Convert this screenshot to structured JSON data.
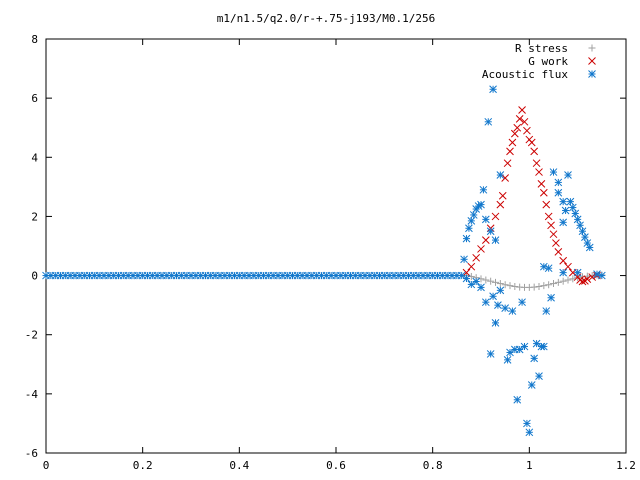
{
  "chart_data": {
    "type": "scatter",
    "title": "m1/n1.5/q2.0/r-+.75-j193/M0.1/256",
    "xlabel": "",
    "ylabel": "",
    "xlim": [
      0,
      1.2
    ],
    "ylim": [
      -6,
      8
    ],
    "x_ticks": [
      0,
      0.2,
      0.4,
      0.6,
      0.8,
      1,
      1.2
    ],
    "x_tick_labels": [
      "0",
      "0.2",
      "0.4",
      "0.6",
      "0.8",
      "1",
      "1.2"
    ],
    "y_ticks": [
      -6,
      -4,
      -2,
      0,
      2,
      4,
      6,
      8
    ],
    "y_tick_labels": [
      "-6",
      "-4",
      "-2",
      "0",
      "2",
      "4",
      "6",
      "8"
    ],
    "grid": false,
    "legend_position": "top-right",
    "series": [
      {
        "name": "R stress",
        "marker": "plus",
        "color": "#a0a0a0",
        "points": [
          [
            0.87,
            0.0
          ],
          [
            0.88,
            -0.03
          ],
          [
            0.89,
            -0.07
          ],
          [
            0.9,
            -0.11
          ],
          [
            0.91,
            -0.15
          ],
          [
            0.92,
            -0.19
          ],
          [
            0.93,
            -0.23
          ],
          [
            0.94,
            -0.27
          ],
          [
            0.95,
            -0.31
          ],
          [
            0.96,
            -0.34
          ],
          [
            0.97,
            -0.37
          ],
          [
            0.98,
            -0.39
          ],
          [
            0.99,
            -0.4
          ],
          [
            1.0,
            -0.4
          ],
          [
            1.01,
            -0.39
          ],
          [
            1.02,
            -0.37
          ],
          [
            1.03,
            -0.34
          ],
          [
            1.04,
            -0.31
          ],
          [
            1.05,
            -0.27
          ],
          [
            1.06,
            -0.23
          ],
          [
            1.07,
            -0.19
          ],
          [
            1.08,
            -0.15
          ],
          [
            1.09,
            -0.11
          ],
          [
            1.1,
            -0.07
          ],
          [
            1.11,
            -0.04
          ],
          [
            1.12,
            -0.02
          ],
          [
            1.13,
            0.0
          ],
          [
            1.14,
            0.02
          ],
          [
            1.15,
            0.02
          ]
        ]
      },
      {
        "name": "G work",
        "marker": "cross",
        "color": "#cc0000",
        "points": [
          [
            0.87,
            0.1
          ],
          [
            0.88,
            0.3
          ],
          [
            0.89,
            0.6
          ],
          [
            0.9,
            0.9
          ],
          [
            0.91,
            1.2
          ],
          [
            0.92,
            1.6
          ],
          [
            0.93,
            2.0
          ],
          [
            0.94,
            2.4
          ],
          [
            0.945,
            2.7
          ],
          [
            0.95,
            3.3
          ],
          [
            0.955,
            3.8
          ],
          [
            0.96,
            4.2
          ],
          [
            0.965,
            4.5
          ],
          [
            0.97,
            4.8
          ],
          [
            0.975,
            5.0
          ],
          [
            0.98,
            5.3
          ],
          [
            0.985,
            5.6
          ],
          [
            0.99,
            5.2
          ],
          [
            0.995,
            4.9
          ],
          [
            1.0,
            4.6
          ],
          [
            1.005,
            4.5
          ],
          [
            1.01,
            4.2
          ],
          [
            1.015,
            3.8
          ],
          [
            1.02,
            3.5
          ],
          [
            1.025,
            3.1
          ],
          [
            1.03,
            2.8
          ],
          [
            1.035,
            2.4
          ],
          [
            1.04,
            2.0
          ],
          [
            1.045,
            1.7
          ],
          [
            1.05,
            1.4
          ],
          [
            1.055,
            1.1
          ],
          [
            1.06,
            0.8
          ],
          [
            1.07,
            0.5
          ],
          [
            1.08,
            0.3
          ],
          [
            1.09,
            0.1
          ],
          [
            1.1,
            -0.05
          ],
          [
            1.105,
            -0.15
          ],
          [
            1.11,
            -0.2
          ],
          [
            1.115,
            -0.18
          ],
          [
            1.12,
            -0.12
          ],
          [
            1.13,
            -0.05
          ],
          [
            1.14,
            0.0
          ]
        ]
      },
      {
        "name": "Acoustic flux",
        "marker": "star",
        "color": "#1177cc",
        "points": [
          [
            0.0,
            0
          ],
          [
            0.01,
            0
          ],
          [
            0.02,
            0
          ],
          [
            0.03,
            0
          ],
          [
            0.04,
            0
          ],
          [
            0.05,
            0
          ],
          [
            0.06,
            0
          ],
          [
            0.07,
            0
          ],
          [
            0.08,
            0
          ],
          [
            0.09,
            0
          ],
          [
            0.1,
            0
          ],
          [
            0.11,
            0
          ],
          [
            0.12,
            0
          ],
          [
            0.13,
            0
          ],
          [
            0.14,
            0
          ],
          [
            0.15,
            0
          ],
          [
            0.16,
            0
          ],
          [
            0.17,
            0
          ],
          [
            0.18,
            0
          ],
          [
            0.19,
            0
          ],
          [
            0.2,
            0
          ],
          [
            0.21,
            0
          ],
          [
            0.22,
            0
          ],
          [
            0.23,
            0
          ],
          [
            0.24,
            0
          ],
          [
            0.25,
            0
          ],
          [
            0.26,
            0
          ],
          [
            0.27,
            0
          ],
          [
            0.28,
            0
          ],
          [
            0.29,
            0
          ],
          [
            0.3,
            0
          ],
          [
            0.31,
            0
          ],
          [
            0.32,
            0
          ],
          [
            0.33,
            0
          ],
          [
            0.34,
            0
          ],
          [
            0.35,
            0
          ],
          [
            0.36,
            0
          ],
          [
            0.37,
            0
          ],
          [
            0.38,
            0
          ],
          [
            0.39,
            0
          ],
          [
            0.4,
            0
          ],
          [
            0.41,
            0
          ],
          [
            0.42,
            0
          ],
          [
            0.43,
            0
          ],
          [
            0.44,
            0
          ],
          [
            0.45,
            0
          ],
          [
            0.46,
            0
          ],
          [
            0.47,
            0
          ],
          [
            0.48,
            0
          ],
          [
            0.49,
            0
          ],
          [
            0.5,
            0
          ],
          [
            0.51,
            0
          ],
          [
            0.52,
            0
          ],
          [
            0.53,
            0
          ],
          [
            0.54,
            0
          ],
          [
            0.55,
            0
          ],
          [
            0.56,
            0
          ],
          [
            0.57,
            0
          ],
          [
            0.58,
            0
          ],
          [
            0.59,
            0
          ],
          [
            0.6,
            0
          ],
          [
            0.61,
            0
          ],
          [
            0.62,
            0
          ],
          [
            0.63,
            0
          ],
          [
            0.64,
            0
          ],
          [
            0.65,
            0
          ],
          [
            0.66,
            0
          ],
          [
            0.67,
            0
          ],
          [
            0.68,
            0
          ],
          [
            0.69,
            0
          ],
          [
            0.7,
            0
          ],
          [
            0.71,
            0
          ],
          [
            0.72,
            0
          ],
          [
            0.73,
            0
          ],
          [
            0.74,
            0
          ],
          [
            0.75,
            0
          ],
          [
            0.76,
            0
          ],
          [
            0.77,
            0
          ],
          [
            0.78,
            0
          ],
          [
            0.79,
            0
          ],
          [
            0.8,
            0
          ],
          [
            0.81,
            0
          ],
          [
            0.82,
            0
          ],
          [
            0.83,
            0
          ],
          [
            0.84,
            0
          ],
          [
            0.85,
            0
          ],
          [
            0.86,
            0
          ],
          [
            0.865,
            0.55
          ],
          [
            0.87,
            1.25
          ],
          [
            0.875,
            1.6
          ],
          [
            0.88,
            1.85
          ],
          [
            0.885,
            2.05
          ],
          [
            0.89,
            2.25
          ],
          [
            0.895,
            2.35
          ],
          [
            0.9,
            2.4
          ],
          [
            0.905,
            2.9
          ],
          [
            0.91,
            1.9
          ],
          [
            0.915,
            5.2
          ],
          [
            0.92,
            1.5
          ],
          [
            0.925,
            6.3
          ],
          [
            0.93,
            1.2
          ],
          [
            0.94,
            3.4
          ],
          [
            0.87,
            -0.1
          ],
          [
            0.88,
            -0.3
          ],
          [
            0.89,
            -0.2
          ],
          [
            0.9,
            -0.4
          ],
          [
            0.91,
            -0.9
          ],
          [
            0.92,
            -2.65
          ],
          [
            0.925,
            -0.7
          ],
          [
            0.93,
            -1.6
          ],
          [
            0.935,
            -1.0
          ],
          [
            0.94,
            -0.5
          ],
          [
            0.95,
            -1.1
          ],
          [
            0.955,
            -2.85
          ],
          [
            0.96,
            -2.6
          ],
          [
            0.965,
            -1.2
          ],
          [
            0.97,
            -2.5
          ],
          [
            0.975,
            -4.2
          ],
          [
            0.98,
            -2.5
          ],
          [
            0.985,
            -0.9
          ],
          [
            0.99,
            -2.4
          ],
          [
            0.995,
            -5.0
          ],
          [
            1.0,
            -5.3
          ],
          [
            1.005,
            -3.7
          ],
          [
            1.01,
            -2.8
          ],
          [
            1.015,
            -2.3
          ],
          [
            1.02,
            -3.4
          ],
          [
            1.025,
            -2.4
          ],
          [
            1.03,
            -2.4
          ],
          [
            1.035,
            -1.2
          ],
          [
            1.045,
            -0.75
          ],
          [
            1.03,
            0.3
          ],
          [
            1.04,
            0.25
          ],
          [
            1.05,
            3.5
          ],
          [
            1.06,
            3.15
          ],
          [
            1.07,
            1.8
          ],
          [
            1.08,
            3.4
          ],
          [
            1.085,
            2.5
          ],
          [
            1.09,
            2.3
          ],
          [
            1.095,
            2.1
          ],
          [
            1.1,
            1.9
          ],
          [
            1.105,
            1.7
          ],
          [
            1.11,
            1.5
          ],
          [
            1.115,
            1.3
          ],
          [
            1.12,
            1.1
          ],
          [
            1.125,
            0.95
          ],
          [
            1.06,
            2.8
          ],
          [
            1.07,
            2.5
          ],
          [
            1.075,
            2.2
          ],
          [
            1.07,
            0.1
          ],
          [
            1.1,
            0.1
          ],
          [
            1.14,
            0.05
          ],
          [
            1.15,
            0.0
          ]
        ]
      }
    ]
  }
}
